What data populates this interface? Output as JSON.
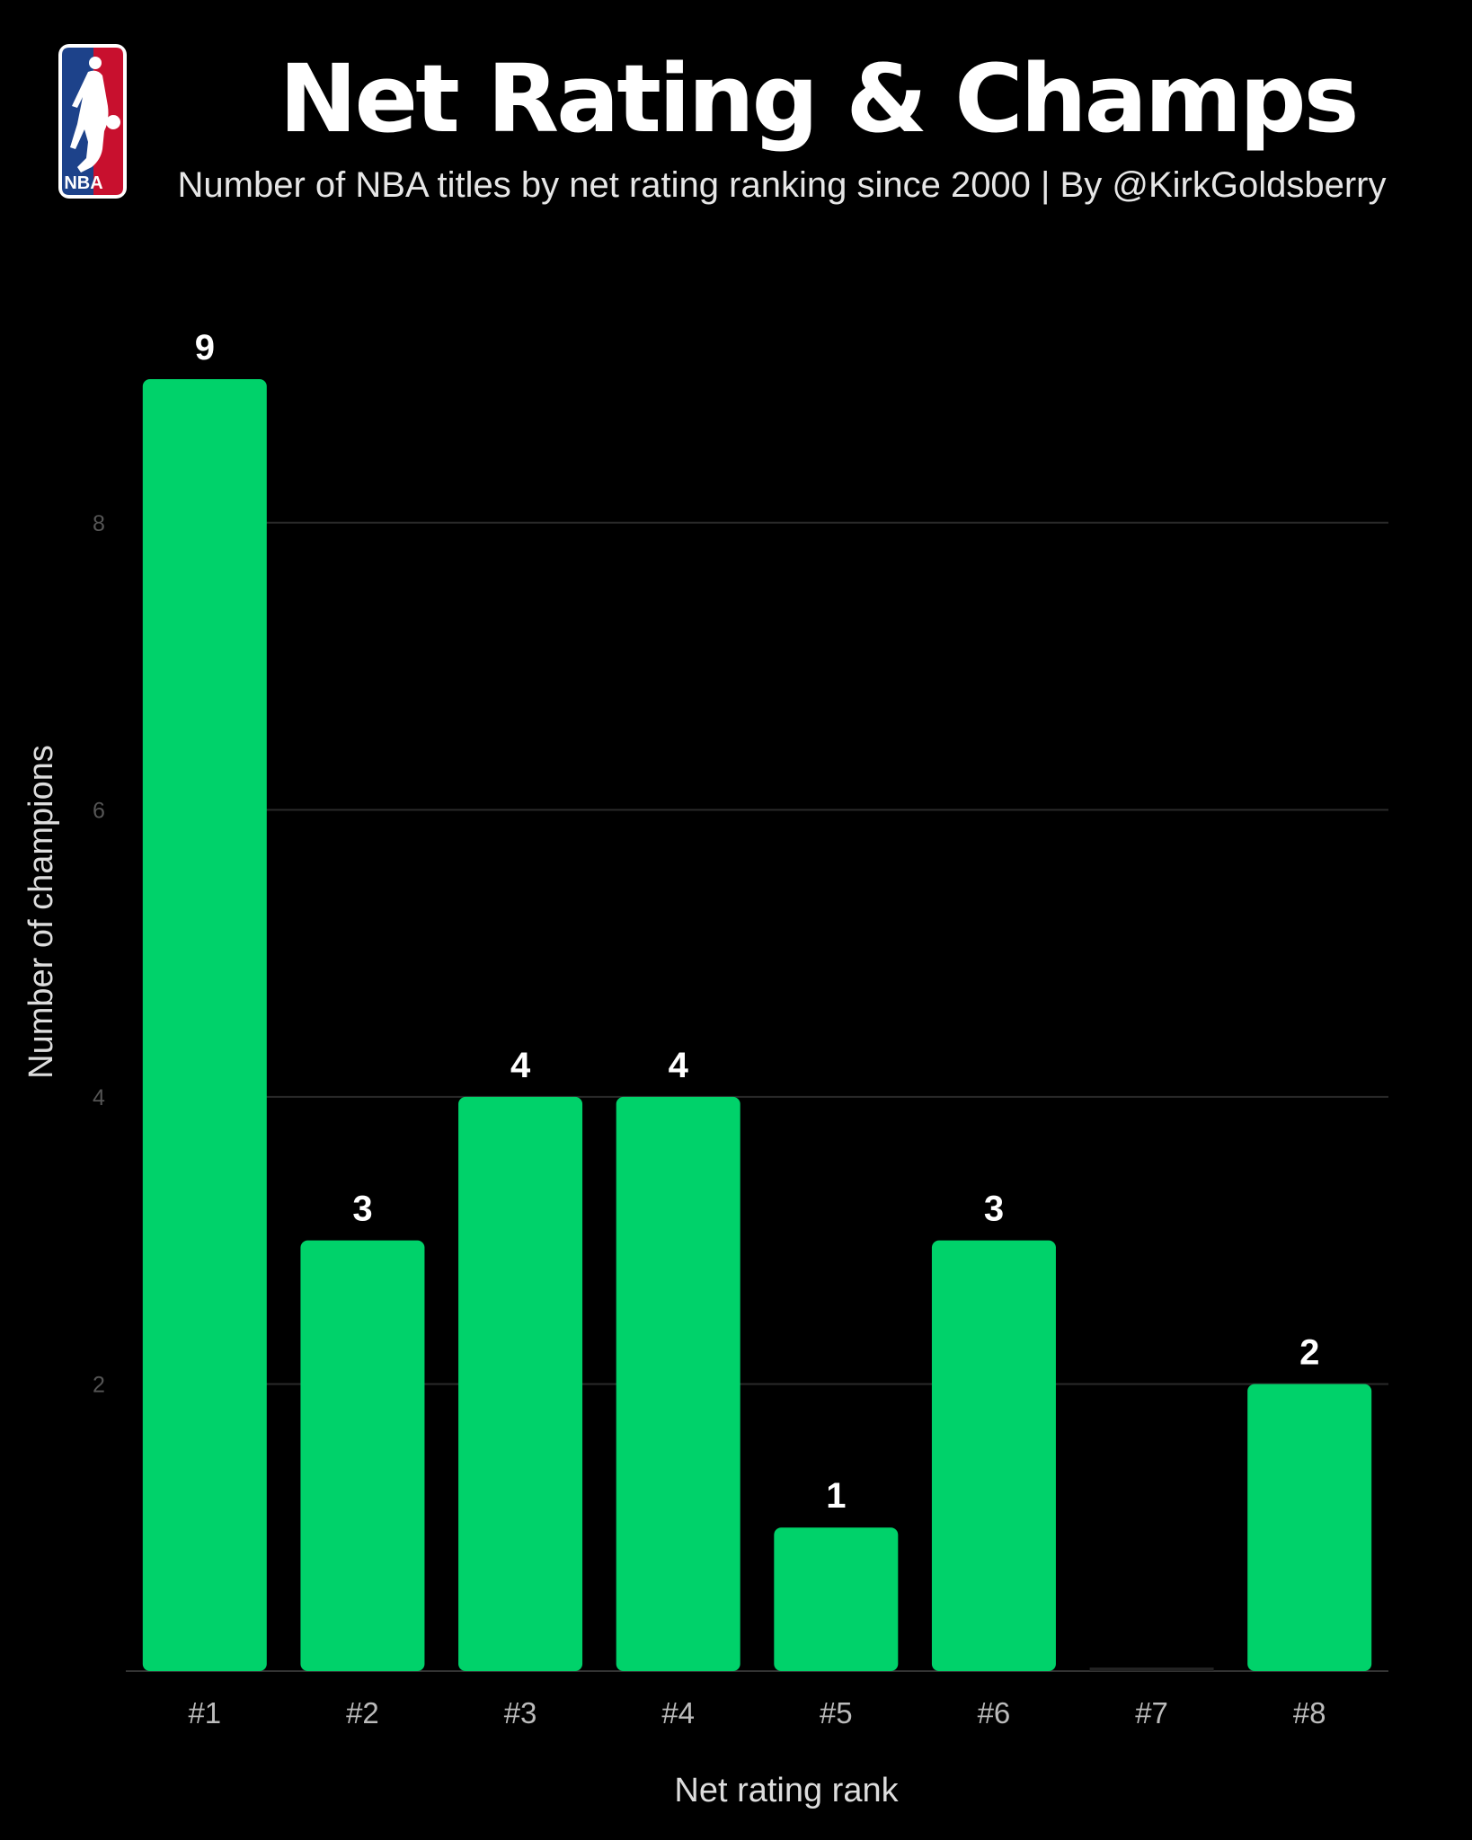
{
  "header": {
    "logo_text": "NBA",
    "title": "Net Rating & Champs",
    "subtitle": "Number of NBA titles by net rating ranking since 2000  | By @KirkGoldsberry"
  },
  "colors": {
    "background": "#000000",
    "bar": "#00d26a",
    "grid": "#2a2a2a",
    "tick_label": "#555555",
    "category_label": "#bbbbbb",
    "axis_label": "#dddddd",
    "logo_blue": "#1d428a",
    "logo_red": "#c8102e"
  },
  "chart_data": {
    "type": "bar",
    "title": "Net Rating & Champs",
    "subtitle": "Number of NBA titles by net rating ranking since 2000  | By @KirkGoldsberry",
    "xlabel": "Net rating rank",
    "ylabel": "Number of champions",
    "categories": [
      "#1",
      "#2",
      "#3",
      "#4",
      "#5",
      "#6",
      "#7",
      "#8"
    ],
    "values": [
      9,
      3,
      4,
      4,
      1,
      3,
      0,
      2
    ],
    "data_labels": [
      "9",
      "3",
      "4",
      "4",
      "1",
      "3",
      "",
      "2"
    ],
    "yticks": [
      2,
      4,
      6,
      8
    ],
    "ylim": [
      0,
      9
    ],
    "grid": true,
    "legend": "none"
  }
}
